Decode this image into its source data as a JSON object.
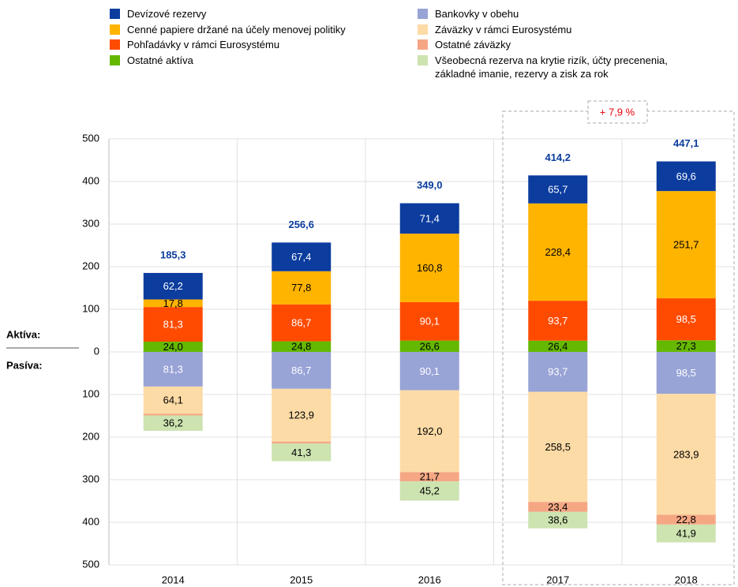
{
  "chart_data": {
    "type": "diverging_stacked_bar",
    "categories": [
      "2014",
      "2015",
      "2016",
      "2017",
      "2018"
    ],
    "side_labels": [
      "Aktíva:",
      "Pasíva:"
    ],
    "series": [
      {
        "name": "Devízové rezervy",
        "side": "assets",
        "color": "#0b3c9e",
        "values": [
          62.2,
          67.4,
          71.4,
          65.7,
          69.6
        ],
        "value_labels": [
          "62,2",
          "67,4",
          "71,4",
          "65,7",
          "69,6"
        ]
      },
      {
        "name": "Cenné papiere držané na účely menovej politiky",
        "side": "assets",
        "color": "#ffb400",
        "values": [
          17.8,
          77.8,
          160.8,
          228.4,
          251.7
        ],
        "value_labels": [
          "17,8",
          "77,8",
          "160,8",
          "228,4",
          "251,7"
        ]
      },
      {
        "name": "Pohľadávky v rámci Eurosystému",
        "side": "assets",
        "color": "#ff4b00",
        "values": [
          81.3,
          86.7,
          90.1,
          93.7,
          98.5
        ],
        "value_labels": [
          "81,3",
          "86,7",
          "90,1",
          "93,7",
          "98,5"
        ]
      },
      {
        "name": "Ostatné aktíva",
        "side": "assets",
        "color": "#65b800",
        "values": [
          24.0,
          24.8,
          26.6,
          26.4,
          27.3
        ],
        "value_labels": [
          "24,0",
          "24,8",
          "26,6",
          "26,4",
          "27,3"
        ]
      },
      {
        "name": "Bankovky v obehu",
        "side": "liabilities",
        "color": "#98a3d6",
        "values": [
          -81.3,
          -86.7,
          -90.1,
          -93.7,
          -98.5
        ],
        "value_labels": [
          "81,3",
          "86,7",
          "90,1",
          "93,7",
          "98,5"
        ]
      },
      {
        "name": "Záväzky v rámci Eurosystému",
        "side": "liabilities",
        "color": "#fddba6",
        "values": [
          -64.1,
          -123.9,
          -192.0,
          -258.5,
          -283.9
        ],
        "value_labels": [
          "64,1",
          "123,9",
          "192,0",
          "258,5",
          "283,9"
        ]
      },
      {
        "name": "Ostatné záväzky",
        "side": "liabilities",
        "color": "#f5a784",
        "values": [
          -3.7,
          -4.7,
          -21.7,
          -23.4,
          -22.8
        ],
        "value_labels": [
          null,
          null,
          "21,7",
          "23,4",
          "22,8"
        ]
      },
      {
        "name": "Všeobecná rezerva na krytie rizík, účty precenenia, základné imanie, rezervy a zisk za rok",
        "side": "liabilities",
        "color": "#cde3b0",
        "values": [
          -36.2,
          -41.3,
          -45.2,
          -38.6,
          -41.9
        ],
        "value_labels": [
          "36,2",
          "41,3",
          "45,2",
          "38,6",
          "41,9"
        ]
      }
    ],
    "totals": [
      185.3,
      256.6,
      349.0,
      414.2,
      447.1
    ],
    "total_labels": [
      "185,3",
      "256,6",
      "349,0",
      "414,2",
      "447,1"
    ],
    "annotation": "+ 7,9 %",
    "ylim": [
      -500,
      500
    ],
    "yticks": [
      {
        "value": -500,
        "label": "500"
      },
      {
        "value": -400,
        "label": "400"
      },
      {
        "value": -300,
        "label": "300"
      },
      {
        "value": -200,
        "label": "200"
      },
      {
        "value": -100,
        "label": "100"
      },
      0,
      100,
      200,
      300,
      400,
      500
    ],
    "grid": true
  }
}
